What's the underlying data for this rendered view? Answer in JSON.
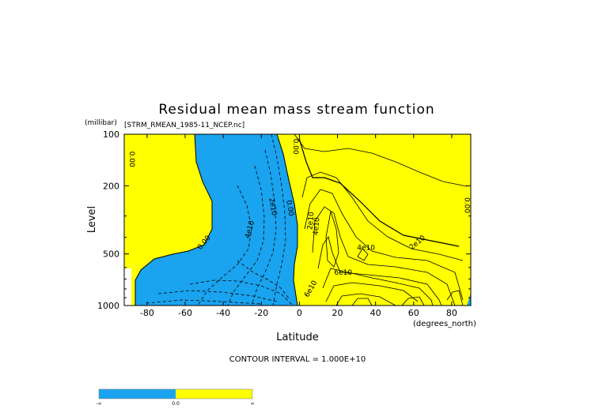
{
  "chart_data": {
    "type": "contour",
    "title": "Residual mean mass stream function",
    "subtitle": "[STRM_RMEAN_1985-11_NCEP.nc]",
    "xlabel": "Latitude",
    "x_units": "(degrees_north)",
    "ylabel": "Level",
    "y_units": "(millibar)",
    "y_scale": "log",
    "xlim": [
      -92,
      90
    ],
    "ylim": [
      1000,
      100
    ],
    "x_ticks": [
      -80,
      -60,
      -40,
      -20,
      0,
      20,
      40,
      60,
      80
    ],
    "x_tick_labels": [
      "-80",
      "-60",
      "-40",
      "-20",
      "0",
      "20",
      "40",
      "60",
      "80"
    ],
    "y_ticks": [
      100,
      200,
      500,
      1000
    ],
    "y_tick_labels": [
      "100",
      "200",
      "500",
      "1000"
    ],
    "contour_interval_text": "CONTOUR INTERVAL = 1.000E+10",
    "colors": {
      "negative": "#1aa3ee",
      "positive": "#ffff00",
      "missing": "#ffffff"
    },
    "colorbar": {
      "labels": [
        "-∞",
        "0.0",
        "∞"
      ]
    },
    "contour_labels": [
      {
        "text": "0.00",
        "lat": -88,
        "p": 140,
        "rotate": 90
      },
      {
        "text": "0.00",
        "lat": 88,
        "p": 260,
        "rotate": 90
      },
      {
        "text": "0.00",
        "lat": -50,
        "p": 430,
        "rotate": -50
      },
      {
        "text": "0.00",
        "lat": -2,
        "p": 118,
        "rotate": 90
      },
      {
        "text": "0.00",
        "lat": -5,
        "p": 270,
        "rotate": 80
      },
      {
        "text": "2e10",
        "lat": -14,
        "p": 265,
        "rotate": 80
      },
      {
        "text": "4e10",
        "lat": -26,
        "p": 360,
        "rotate": -75
      },
      {
        "text": "2e10",
        "lat": 6,
        "p": 320,
        "rotate": -85
      },
      {
        "text": "4e10",
        "lat": 9,
        "p": 345,
        "rotate": -85
      },
      {
        "text": "4e10",
        "lat": 35,
        "p": 460,
        "rotate": 0
      },
      {
        "text": "2e10",
        "lat": 62,
        "p": 430,
        "rotate": -40
      },
      {
        "text": "6e10",
        "lat": 23,
        "p": 645,
        "rotate": 0
      },
      {
        "text": "6e10",
        "lat": 6,
        "p": 800,
        "rotate": -60
      }
    ]
  }
}
